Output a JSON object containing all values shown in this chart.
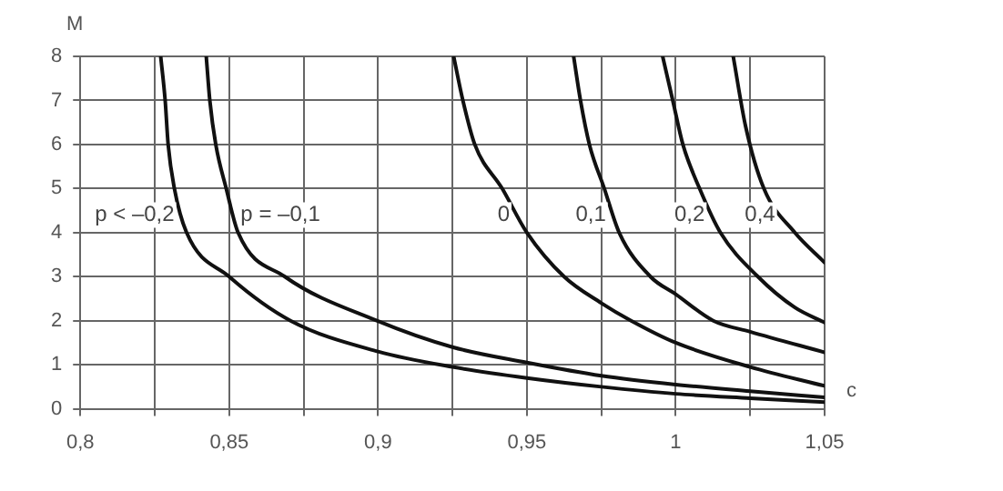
{
  "chart_data": {
    "type": "line",
    "xlabel": "c",
    "ylabel": "M",
    "xlim": [
      0.8,
      1.05
    ],
    "ylim": [
      0,
      8
    ],
    "xticks": [
      {
        "value": 0.8,
        "label": "0,8"
      },
      {
        "value": 0.825,
        "label": null
      },
      {
        "value": 0.85,
        "label": "0,85"
      },
      {
        "value": 0.875,
        "label": null
      },
      {
        "value": 0.9,
        "label": "0,9"
      },
      {
        "value": 0.925,
        "label": null
      },
      {
        "value": 0.95,
        "label": "0,95"
      },
      {
        "value": 0.975,
        "label": null
      },
      {
        "value": 1,
        "label": "1"
      },
      {
        "value": 1.025,
        "label": null
      },
      {
        "value": 1.05,
        "label": "1,05"
      }
    ],
    "yticks": [
      0,
      1,
      2,
      3,
      4,
      5,
      6,
      7,
      8
    ],
    "grid": true,
    "legend": false,
    "marker": "none",
    "line_style": "solid",
    "series": [
      {
        "name": "p < –0,2",
        "color": "#111111",
        "x": [
          0.827,
          0.8285,
          0.8295,
          0.8316,
          0.8357,
          0.85,
          0.8706,
          0.9,
          0.925,
          0.95,
          0.975,
          1.0,
          1.025,
          1.05
        ],
        "values": [
          8,
          7,
          6,
          5,
          4,
          3,
          2,
          1.3,
          0.95,
          0.7,
          0.5,
          0.34,
          0.24,
          0.15
        ]
      },
      {
        "name": "p = –0,1",
        "color": "#111111",
        "x": [
          0.8423,
          0.8435,
          0.8455,
          0.849,
          0.853,
          0.8687,
          0.8996,
          0.925,
          0.95,
          0.975,
          1.0,
          1.025,
          1.05
        ],
        "values": [
          8,
          7,
          6,
          5,
          4,
          3,
          2,
          1.4,
          1.05,
          0.75,
          0.55,
          0.4,
          0.26
        ]
      },
      {
        "name": "0",
        "color": "#111111",
        "x": [
          0.9254,
          0.9285,
          0.9325,
          0.9417,
          0.95,
          0.9625,
          0.975,
          0.985,
          1.0,
          1.025,
          1.05
        ],
        "values": [
          8,
          7,
          6,
          5,
          4,
          3,
          2.4,
          2,
          1.5,
          0.95,
          0.52
        ]
      },
      {
        "name": "0,1",
        "color": "#111111",
        "x": [
          0.9657,
          0.968,
          0.971,
          0.976,
          0.981,
          0.9915,
          1.0,
          1.0126,
          1.025,
          1.05
        ],
        "values": [
          8,
          7,
          6,
          5,
          4,
          3,
          2.6,
          2,
          1.75,
          1.28
        ]
      },
      {
        "name": "0,2",
        "color": "#111111",
        "x": [
          0.9956,
          0.999,
          1.0024,
          1.008,
          1.015,
          1.0276,
          1.04,
          1.05
        ],
        "values": [
          8,
          7,
          6,
          5,
          4,
          3,
          2.3,
          1.96
        ]
      },
      {
        "name": "0,4",
        "color": "#111111",
        "x": [
          1.0193,
          1.0235,
          1.0296,
          1.04,
          1.05
        ],
        "values": [
          8,
          6.4,
          5,
          4,
          3.32
        ]
      }
    ]
  }
}
